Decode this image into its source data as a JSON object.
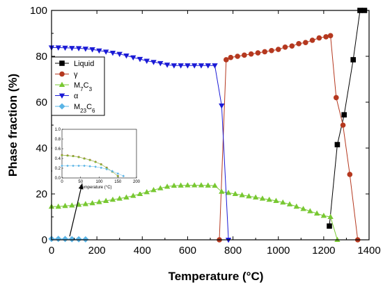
{
  "chart_data": {
    "type": "scatter",
    "title": "",
    "xlabel": "Temperature (°C)",
    "ylabel": "Phase fraction (%)",
    "xlim": [
      0,
      1400
    ],
    "ylim": [
      0,
      100
    ],
    "xticks": [
      0,
      200,
      400,
      600,
      800,
      1000,
      1200,
      1400
    ],
    "yticks": [
      0,
      20,
      40,
      60,
      80,
      100
    ],
    "grid": false,
    "legend_position": "top-left",
    "series": [
      {
        "name": "Liquid",
        "color": "#000000",
        "marker": "square",
        "x": [
          1225,
          1260,
          1290,
          1330,
          1360,
          1380
        ],
        "y": [
          6,
          41.5,
          54.5,
          78.5,
          100,
          100
        ]
      },
      {
        "name": "γ",
        "color": "#b5381f",
        "marker": "circle",
        "x": [
          740,
          770,
          790,
          820,
          850,
          880,
          910,
          940,
          970,
          1000,
          1030,
          1060,
          1090,
          1120,
          1150,
          1180,
          1210,
          1230,
          1255,
          1285,
          1315,
          1350
        ],
        "y": [
          0,
          78.5,
          79.5,
          80,
          80.5,
          81,
          81.5,
          82,
          82.5,
          83,
          84,
          84.5,
          85.5,
          86,
          87,
          88,
          88.5,
          89,
          62,
          50,
          28.5,
          0
        ]
      },
      {
        "name": "M7C3",
        "color": "#78c832",
        "marker": "triangle-up",
        "x": [
          0,
          30,
          60,
          90,
          120,
          150,
          180,
          210,
          240,
          270,
          300,
          330,
          360,
          390,
          420,
          450,
          480,
          510,
          540,
          570,
          600,
          630,
          660,
          690,
          720,
          750,
          780,
          810,
          840,
          870,
          900,
          930,
          960,
          990,
          1020,
          1050,
          1080,
          1110,
          1140,
          1170,
          1200,
          1230,
          1260
        ],
        "y": [
          14.5,
          14.5,
          14.8,
          15,
          15.3,
          15.6,
          16,
          16.5,
          17,
          17.5,
          18,
          18.5,
          19.2,
          20,
          20.8,
          21.7,
          22.5,
          23.2,
          23.6,
          23.7,
          23.8,
          23.8,
          23.8,
          23.7,
          23.6,
          21,
          20.5,
          20,
          19.5,
          19,
          18.5,
          18,
          17.5,
          17,
          16.3,
          15.5,
          14.5,
          13.5,
          12.5,
          11.5,
          10.5,
          10,
          0
        ]
      },
      {
        "name": "α",
        "color": "#1a1ad6",
        "marker": "triangle-down",
        "x": [
          0,
          30,
          60,
          90,
          120,
          150,
          180,
          210,
          240,
          270,
          300,
          330,
          360,
          390,
          420,
          450,
          480,
          510,
          540,
          570,
          600,
          630,
          660,
          690,
          720,
          750,
          780
        ],
        "y": [
          83.8,
          83.8,
          83.7,
          83.6,
          83.5,
          83.3,
          83,
          82.5,
          82,
          81.5,
          81,
          80.3,
          79.5,
          78.8,
          78,
          77.5,
          77,
          76.3,
          76,
          76,
          76,
          76,
          76,
          76,
          76,
          58.5,
          0
        ]
      },
      {
        "name": "M23C6",
        "color": "#5ab4e6",
        "marker": "diamond",
        "x": [
          0,
          30,
          60,
          90,
          120,
          150
        ],
        "y": [
          0.4,
          0.4,
          0.35,
          0.3,
          0.25,
          0.2
        ]
      }
    ],
    "inset": {
      "xlabel": "Temperature (°C)",
      "xlim": [
        0,
        200
      ],
      "ylim": [
        0,
        1.0
      ],
      "xticks": [
        0,
        50,
        100,
        150,
        200
      ],
      "yticks": [
        0.0,
        0.2,
        0.4,
        0.6,
        0.8,
        1.0
      ],
      "series": [
        {
          "name": "γ",
          "color": "#b5381f",
          "marker": "circle",
          "x": [
            0,
            15,
            30,
            45,
            60,
            75,
            90,
            105,
            120,
            135,
            150
          ],
          "y": [
            0.47,
            0.46,
            0.45,
            0.43,
            0.4,
            0.37,
            0.33,
            0.28,
            0.21,
            0.13,
            0.04
          ]
        },
        {
          "name": "M7C3",
          "color": "#78c832",
          "marker": "triangle-up",
          "x": [
            0,
            15,
            30,
            45,
            60,
            75,
            90,
            105,
            120,
            135,
            150
          ],
          "y": [
            0.47,
            0.46,
            0.45,
            0.43,
            0.4,
            0.37,
            0.33,
            0.28,
            0.21,
            0.13,
            0.04
          ]
        },
        {
          "name": "M23C6",
          "color": "#5ab4e6",
          "marker": "diamond",
          "x": [
            0,
            15,
            30,
            45,
            60,
            75,
            90,
            105,
            120,
            135,
            150,
            165
          ],
          "y": [
            0.25,
            0.25,
            0.25,
            0.25,
            0.25,
            0.24,
            0.23,
            0.21,
            0.18,
            0.14,
            0.09,
            0.04
          ]
        }
      ]
    }
  }
}
